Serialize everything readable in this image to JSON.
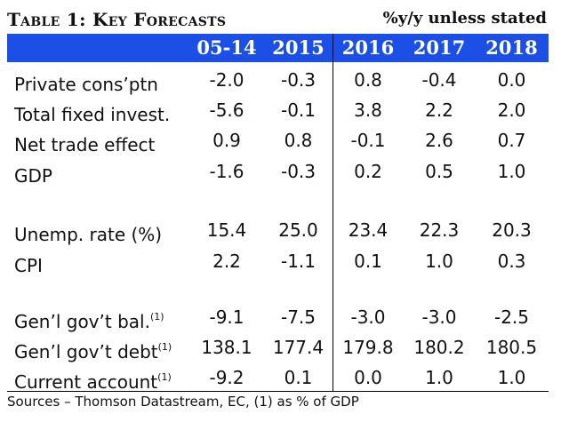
{
  "title": "Table 1: Key Forecasts",
  "unit_note": "%y/y unless stated",
  "columns": [
    "05-14",
    "2015",
    "2016",
    "2017",
    "2018"
  ],
  "rows": [
    {
      "label": "Private cons’ptn",
      "note": "",
      "values": [
        "-2.0",
        "-0.3",
        "0.8",
        "-0.4",
        "0.0"
      ]
    },
    {
      "label": "Total fixed invest.",
      "note": "",
      "values": [
        "-5.6",
        "-0.1",
        "3.8",
        "2.2",
        "2.0"
      ]
    },
    {
      "label": "Net trade effect",
      "note": "",
      "values": [
        "0.9",
        "0.8",
        "-0.1",
        "2.6",
        "0.7"
      ]
    },
    {
      "label": "GDP",
      "note": "",
      "values": [
        "-1.6",
        "-0.3",
        "0.2",
        "0.5",
        "1.0"
      ]
    },
    {
      "label": "Unemp. rate (%)",
      "note": "",
      "values": [
        "15.4",
        "25.0",
        "23.4",
        "22.3",
        "20.3"
      ]
    },
    {
      "label": "CPI",
      "note": "",
      "values": [
        "2.2",
        "-1.1",
        "0.1",
        "1.0",
        "0.3"
      ]
    },
    {
      "label": "Gen’l gov’t bal.",
      "note": "(1)",
      "values": [
        "-9.1",
        "-7.5",
        "-3.0",
        "-3.0",
        "-2.5"
      ]
    },
    {
      "label": "Gen’l gov’t debt",
      "note": "(1)",
      "values": [
        "138.1",
        "177.4",
        "179.8",
        "180.2",
        "180.5"
      ]
    },
    {
      "label": "Current account",
      "note": "(1)",
      "values": [
        "-9.2",
        "0.1",
        "0.0",
        "1.0",
        "1.0"
      ]
    }
  ],
  "source": "Sources – Thomson Datastream, EC, (1) as % of GDP"
}
